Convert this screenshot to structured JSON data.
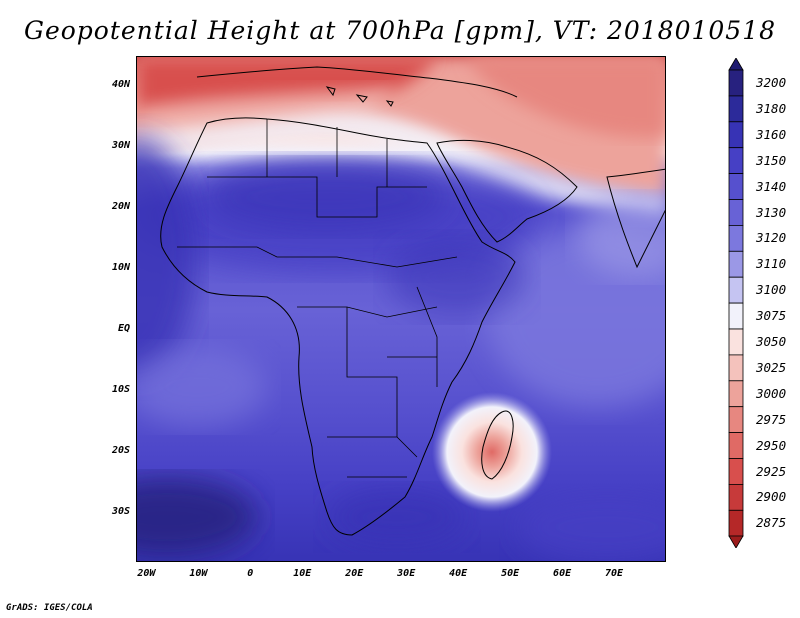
{
  "title": "Geopotential Height at 700hPa [gpm], VT: 2018010518",
  "credit": "GrADS: IGES/COLA",
  "map": {
    "region": "Africa",
    "field": "Geopotential Height at 700hPa",
    "units": "gpm",
    "valid_time": "2018010518",
    "lon_range": [
      -22,
      80
    ],
    "lat_range": [
      -38,
      45
    ],
    "lat_labels": [
      {
        "lat": 40,
        "text": "40N"
      },
      {
        "lat": 30,
        "text": "30N"
      },
      {
        "lat": 20,
        "text": "20N"
      },
      {
        "lat": 10,
        "text": "10N"
      },
      {
        "lat": 0,
        "text": "EQ"
      },
      {
        "lat": -10,
        "text": "10S"
      },
      {
        "lat": -20,
        "text": "20S"
      },
      {
        "lat": -30,
        "text": "30S"
      }
    ],
    "lon_labels": [
      {
        "lon": -20,
        "text": "20W"
      },
      {
        "lon": -10,
        "text": "10W"
      },
      {
        "lon": 0,
        "text": "0"
      },
      {
        "lon": 10,
        "text": "10E"
      },
      {
        "lon": 20,
        "text": "20E"
      },
      {
        "lon": 30,
        "text": "30E"
      },
      {
        "lon": 40,
        "text": "40E"
      },
      {
        "lon": 50,
        "text": "50E"
      },
      {
        "lon": 60,
        "text": "60E"
      },
      {
        "lon": 70,
        "text": "70E"
      }
    ]
  },
  "colorbar": {
    "levels": [
      {
        "value": "3200",
        "color": "#27217f"
      },
      {
        "value": "3180",
        "color": "#2c2a9a"
      },
      {
        "value": "3160",
        "color": "#3733b5"
      },
      {
        "value": "3150",
        "color": "#4640c5"
      },
      {
        "value": "3140",
        "color": "#5650ce"
      },
      {
        "value": "3130",
        "color": "#6862d6"
      },
      {
        "value": "3120",
        "color": "#7c78de"
      },
      {
        "value": "3110",
        "color": "#9b98e6"
      },
      {
        "value": "3100",
        "color": "#c5c4f2"
      },
      {
        "value": "3075",
        "color": "#f2f2fb"
      },
      {
        "value": "3050",
        "color": "#fae2df"
      },
      {
        "value": "3025",
        "color": "#f4c2bc"
      },
      {
        "value": "3000",
        "color": "#eda39b"
      },
      {
        "value": "2975",
        "color": "#e78780"
      },
      {
        "value": "2950",
        "color": "#e06a65"
      },
      {
        "value": "2925",
        "color": "#d84f4d"
      },
      {
        "value": "2900",
        "color": "#c73a3a"
      },
      {
        "value": "2875",
        "color": "#b52828"
      }
    ],
    "top_arrow_color": "#1e1a70",
    "bottom_arrow_color": "#9c1c1c"
  }
}
